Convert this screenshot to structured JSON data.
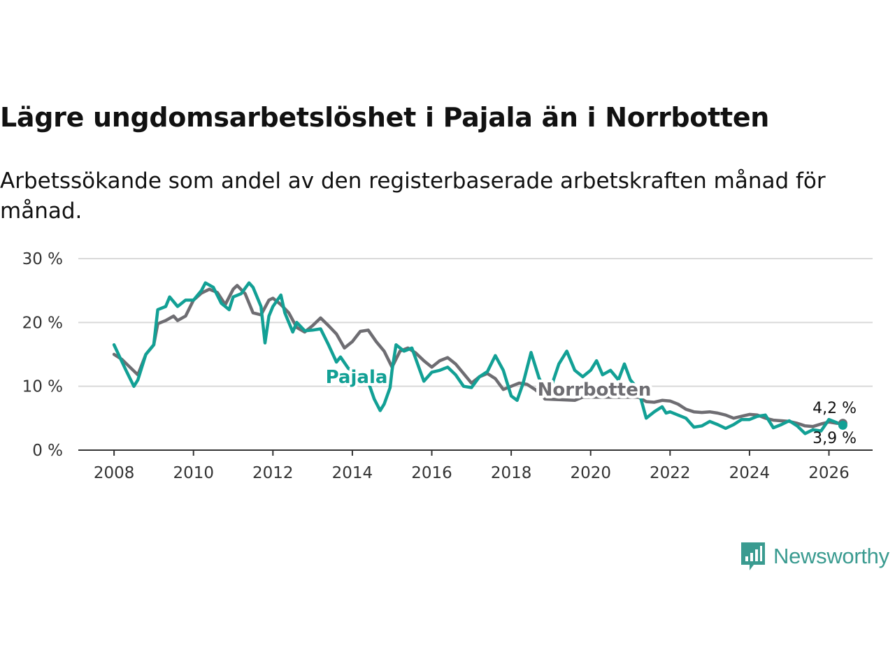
{
  "chart_data": {
    "type": "line",
    "title": "Lägre ungdomsarbetslöshet i Pajala än i Norrbotten",
    "subtitle": "Arbetssökande som andel av den registerbaserade arbetskraften månad för månad.",
    "y_ticks": [
      "0 %",
      "10 %",
      "20 %",
      "30 %"
    ],
    "y_tick_values": [
      0,
      10,
      20,
      30
    ],
    "x_ticks": [
      "2008",
      "2010",
      "2012",
      "2014",
      "2016",
      "2018",
      "2020",
      "2022",
      "2024",
      "2026"
    ],
    "x_tick_values": [
      2008,
      2010,
      2012,
      2014,
      2016,
      2018,
      2020,
      2022,
      2024,
      2026
    ],
    "xlim": [
      2007.1,
      2027.1
    ],
    "ylim": [
      0,
      30
    ],
    "grid": true,
    "series": [
      {
        "name": "Norrbotten",
        "label": "Norrbotten",
        "color": "#6e6d72",
        "end_label": "4,2 %",
        "points": [
          [
            2008,
            15.0
          ],
          [
            2008.2,
            14.2
          ],
          [
            2008.4,
            13.0
          ],
          [
            2008.6,
            11.8
          ],
          [
            2008.8,
            15.0
          ],
          [
            2009,
            16.5
          ],
          [
            2009.1,
            19.8
          ],
          [
            2009.3,
            20.3
          ],
          [
            2009.5,
            21.0
          ],
          [
            2009.6,
            20.3
          ],
          [
            2009.8,
            21.0
          ],
          [
            2010,
            23.5
          ],
          [
            2010.2,
            24.6
          ],
          [
            2010.4,
            25.2
          ],
          [
            2010.6,
            24.7
          ],
          [
            2010.8,
            22.8
          ],
          [
            2011,
            25.2
          ],
          [
            2011.1,
            25.8
          ],
          [
            2011.3,
            24.5
          ],
          [
            2011.5,
            21.5
          ],
          [
            2011.7,
            21.2
          ],
          [
            2011.9,
            23.5
          ],
          [
            2012,
            23.8
          ],
          [
            2012.2,
            22.8
          ],
          [
            2012.4,
            21.5
          ],
          [
            2012.6,
            19.2
          ],
          [
            2012.8,
            18.5
          ],
          [
            2013,
            19.5
          ],
          [
            2013.2,
            20.7
          ],
          [
            2013.4,
            19.5
          ],
          [
            2013.6,
            18.2
          ],
          [
            2013.8,
            16.0
          ],
          [
            2014,
            17.0
          ],
          [
            2014.2,
            18.6
          ],
          [
            2014.4,
            18.8
          ],
          [
            2014.6,
            17.0
          ],
          [
            2014.8,
            15.5
          ],
          [
            2015,
            13.0
          ],
          [
            2015.2,
            15.5
          ],
          [
            2015.4,
            16.0
          ],
          [
            2015.6,
            15.2
          ],
          [
            2015.8,
            14.0
          ],
          [
            2016,
            13.0
          ],
          [
            2016.2,
            14.0
          ],
          [
            2016.4,
            14.5
          ],
          [
            2016.6,
            13.5
          ],
          [
            2016.8,
            12.0
          ],
          [
            2017,
            10.5
          ],
          [
            2017.2,
            11.5
          ],
          [
            2017.4,
            12.0
          ],
          [
            2017.6,
            11.2
          ],
          [
            2017.8,
            9.5
          ],
          [
            2018,
            10.0
          ],
          [
            2018.2,
            10.5
          ],
          [
            2018.4,
            10.3
          ],
          [
            2018.6,
            9.5
          ],
          [
            2018.8,
            8.5
          ],
          [
            2018.85,
            8.0
          ],
          [
            2019.6,
            7.8
          ],
          [
            2019.8,
            8.3
          ],
          [
            2021.2,
            8.3
          ],
          [
            2021.4,
            7.6
          ],
          [
            2021.6,
            7.5
          ],
          [
            2021.8,
            7.8
          ],
          [
            2022,
            7.7
          ],
          [
            2022.2,
            7.2
          ],
          [
            2022.4,
            6.4
          ],
          [
            2022.6,
            6.0
          ],
          [
            2022.8,
            5.9
          ],
          [
            2023,
            6.0
          ],
          [
            2023.2,
            5.8
          ],
          [
            2023.4,
            5.5
          ],
          [
            2023.6,
            5.0
          ],
          [
            2023.8,
            5.3
          ],
          [
            2024,
            5.6
          ],
          [
            2024.2,
            5.5
          ],
          [
            2024.4,
            5.0
          ],
          [
            2024.6,
            4.7
          ],
          [
            2024.8,
            4.6
          ],
          [
            2025,
            4.5
          ],
          [
            2025.2,
            4.2
          ],
          [
            2025.4,
            3.8
          ],
          [
            2025.6,
            3.7
          ],
          [
            2025.8,
            4.1
          ],
          [
            2026,
            4.4
          ],
          [
            2026.2,
            4.2
          ],
          [
            2026.35,
            4.2
          ]
        ]
      },
      {
        "name": "Pajala",
        "label": "Pajala",
        "color": "#12a095",
        "end_label": "3,9 %",
        "points": [
          [
            2008,
            16.5
          ],
          [
            2008.15,
            14.5
          ],
          [
            2008.3,
            12.5
          ],
          [
            2008.5,
            10.0
          ],
          [
            2008.6,
            11.0
          ],
          [
            2008.8,
            15.0
          ],
          [
            2009,
            16.5
          ],
          [
            2009.1,
            22.0
          ],
          [
            2009.3,
            22.5
          ],
          [
            2009.4,
            24.0
          ],
          [
            2009.6,
            22.5
          ],
          [
            2009.8,
            23.5
          ],
          [
            2010,
            23.5
          ],
          [
            2010.2,
            25.0
          ],
          [
            2010.3,
            26.2
          ],
          [
            2010.5,
            25.5
          ],
          [
            2010.7,
            23.0
          ],
          [
            2010.9,
            22.0
          ],
          [
            2011,
            24.0
          ],
          [
            2011.2,
            24.5
          ],
          [
            2011.4,
            26.2
          ],
          [
            2011.5,
            25.5
          ],
          [
            2011.7,
            22.5
          ],
          [
            2011.8,
            16.8
          ],
          [
            2011.9,
            21.0
          ],
          [
            2012,
            22.5
          ],
          [
            2012.2,
            24.3
          ],
          [
            2012.3,
            21.5
          ],
          [
            2012.5,
            18.5
          ],
          [
            2012.6,
            20.0
          ],
          [
            2012.8,
            18.7
          ],
          [
            2013,
            18.8
          ],
          [
            2013.2,
            19.0
          ],
          [
            2013.4,
            16.5
          ],
          [
            2013.6,
            13.8
          ],
          [
            2013.7,
            14.6
          ],
          [
            2013.9,
            12.8
          ],
          [
            2014.05,
            12.3
          ],
          [
            2014.2,
            11.3
          ],
          [
            2014.4,
            10.7
          ],
          [
            2014.55,
            8.0
          ],
          [
            2014.7,
            6.2
          ],
          [
            2014.8,
            7.2
          ],
          [
            2014.95,
            9.8
          ],
          [
            2015,
            12.5
          ],
          [
            2015.1,
            16.5
          ],
          [
            2015.3,
            15.5
          ],
          [
            2015.5,
            16.0
          ],
          [
            2015.7,
            12.5
          ],
          [
            2015.8,
            10.8
          ],
          [
            2016,
            12.2
          ],
          [
            2016.2,
            12.5
          ],
          [
            2016.4,
            13.0
          ],
          [
            2016.6,
            11.8
          ],
          [
            2016.8,
            10.0
          ],
          [
            2017,
            9.8
          ],
          [
            2017.2,
            11.5
          ],
          [
            2017.4,
            12.3
          ],
          [
            2017.6,
            14.8
          ],
          [
            2017.8,
            12.5
          ],
          [
            2018,
            8.5
          ],
          [
            2018.15,
            7.8
          ],
          [
            2018.3,
            10.5
          ],
          [
            2018.5,
            15.3
          ],
          [
            2018.7,
            11.3
          ],
          [
            2018.85,
            9.5
          ],
          [
            2019,
            9.8
          ],
          [
            2019.2,
            13.5
          ],
          [
            2019.4,
            15.5
          ],
          [
            2019.6,
            12.5
          ],
          [
            2019.8,
            11.5
          ],
          [
            2020,
            12.5
          ],
          [
            2020.15,
            14.0
          ],
          [
            2020.3,
            11.8
          ],
          [
            2020.5,
            12.5
          ],
          [
            2020.7,
            11.0
          ],
          [
            2020.85,
            13.5
          ],
          [
            2021,
            11.0
          ],
          [
            2021.2,
            9.5
          ],
          [
            2021.4,
            5.0
          ],
          [
            2021.6,
            6.0
          ],
          [
            2021.8,
            6.8
          ],
          [
            2021.9,
            5.8
          ],
          [
            2022,
            6.0
          ],
          [
            2022.2,
            5.5
          ],
          [
            2022.4,
            5.0
          ],
          [
            2022.6,
            3.6
          ],
          [
            2022.8,
            3.8
          ],
          [
            2023,
            4.5
          ],
          [
            2023.2,
            4.0
          ],
          [
            2023.4,
            3.4
          ],
          [
            2023.6,
            4.0
          ],
          [
            2023.8,
            4.8
          ],
          [
            2024,
            4.8
          ],
          [
            2024.2,
            5.3
          ],
          [
            2024.4,
            5.5
          ],
          [
            2024.6,
            3.5
          ],
          [
            2024.8,
            4.0
          ],
          [
            2025,
            4.6
          ],
          [
            2025.2,
            3.8
          ],
          [
            2025.4,
            2.6
          ],
          [
            2025.6,
            3.2
          ],
          [
            2025.8,
            3.0
          ],
          [
            2026,
            4.8
          ],
          [
            2026.2,
            4.3
          ],
          [
            2026.35,
            3.9
          ]
        ]
      }
    ]
  },
  "branding": {
    "logo_text": "Newsworthy",
    "logo_color": "#3a9b90"
  }
}
